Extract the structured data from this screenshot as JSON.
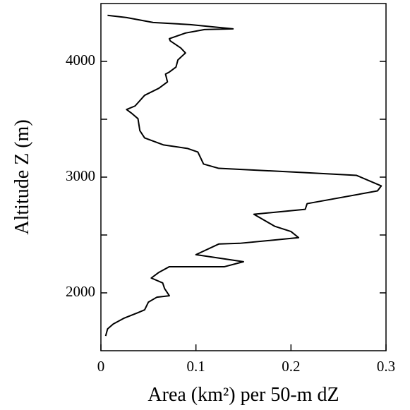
{
  "chart_data": {
    "type": "line",
    "x_label": "Area (km²) per 50-m dZ",
    "y_label": "Altitude Z (m)",
    "xlim": [
      0,
      0.3
    ],
    "xticks": [
      0,
      0.1,
      0.2,
      0.3
    ],
    "ylim": [
      1500,
      4500
    ],
    "yticks": [
      2000,
      3000,
      4000
    ],
    "yminor_ticks": [
      2500,
      3500
    ],
    "series": [
      {
        "color": "#000000",
        "x": [
          0.005,
          0.007,
          0.013,
          0.024,
          0.039,
          0.046,
          0.05,
          0.059,
          0.072,
          0.067,
          0.065,
          0.053,
          0.061,
          0.072,
          0.13,
          0.15,
          0.1,
          0.124,
          0.146,
          0.208,
          0.2,
          0.183,
          0.161,
          0.215,
          0.217,
          0.291,
          0.295,
          0.269,
          0.213,
          0.124,
          0.108,
          0.102,
          0.091,
          0.066,
          0.046,
          0.041,
          0.039,
          0.032,
          0.027,
          0.036,
          0.046,
          0.061,
          0.07,
          0.068,
          0.072,
          0.079,
          0.081,
          0.085,
          0.089,
          0.084,
          0.073,
          0.072,
          0.089,
          0.109,
          0.139,
          0.094,
          0.055,
          0.027,
          0.007
        ],
        "values": [
          1627,
          1688,
          1731,
          1780,
          1829,
          1853,
          1920,
          1963,
          1975,
          2037,
          2086,
          2128,
          2177,
          2226,
          2226,
          2269,
          2330,
          2422,
          2428,
          2477,
          2530,
          2575,
          2679,
          2722,
          2771,
          2881,
          2924,
          3015,
          3040,
          3076,
          3113,
          3217,
          3248,
          3278,
          3339,
          3401,
          3505,
          3554,
          3584,
          3615,
          3707,
          3768,
          3823,
          3890,
          3908,
          3951,
          4012,
          4043,
          4073,
          4116,
          4177,
          4196,
          4245,
          4275,
          4281,
          4318,
          4336,
          4379,
          4398
        ]
      }
    ]
  }
}
